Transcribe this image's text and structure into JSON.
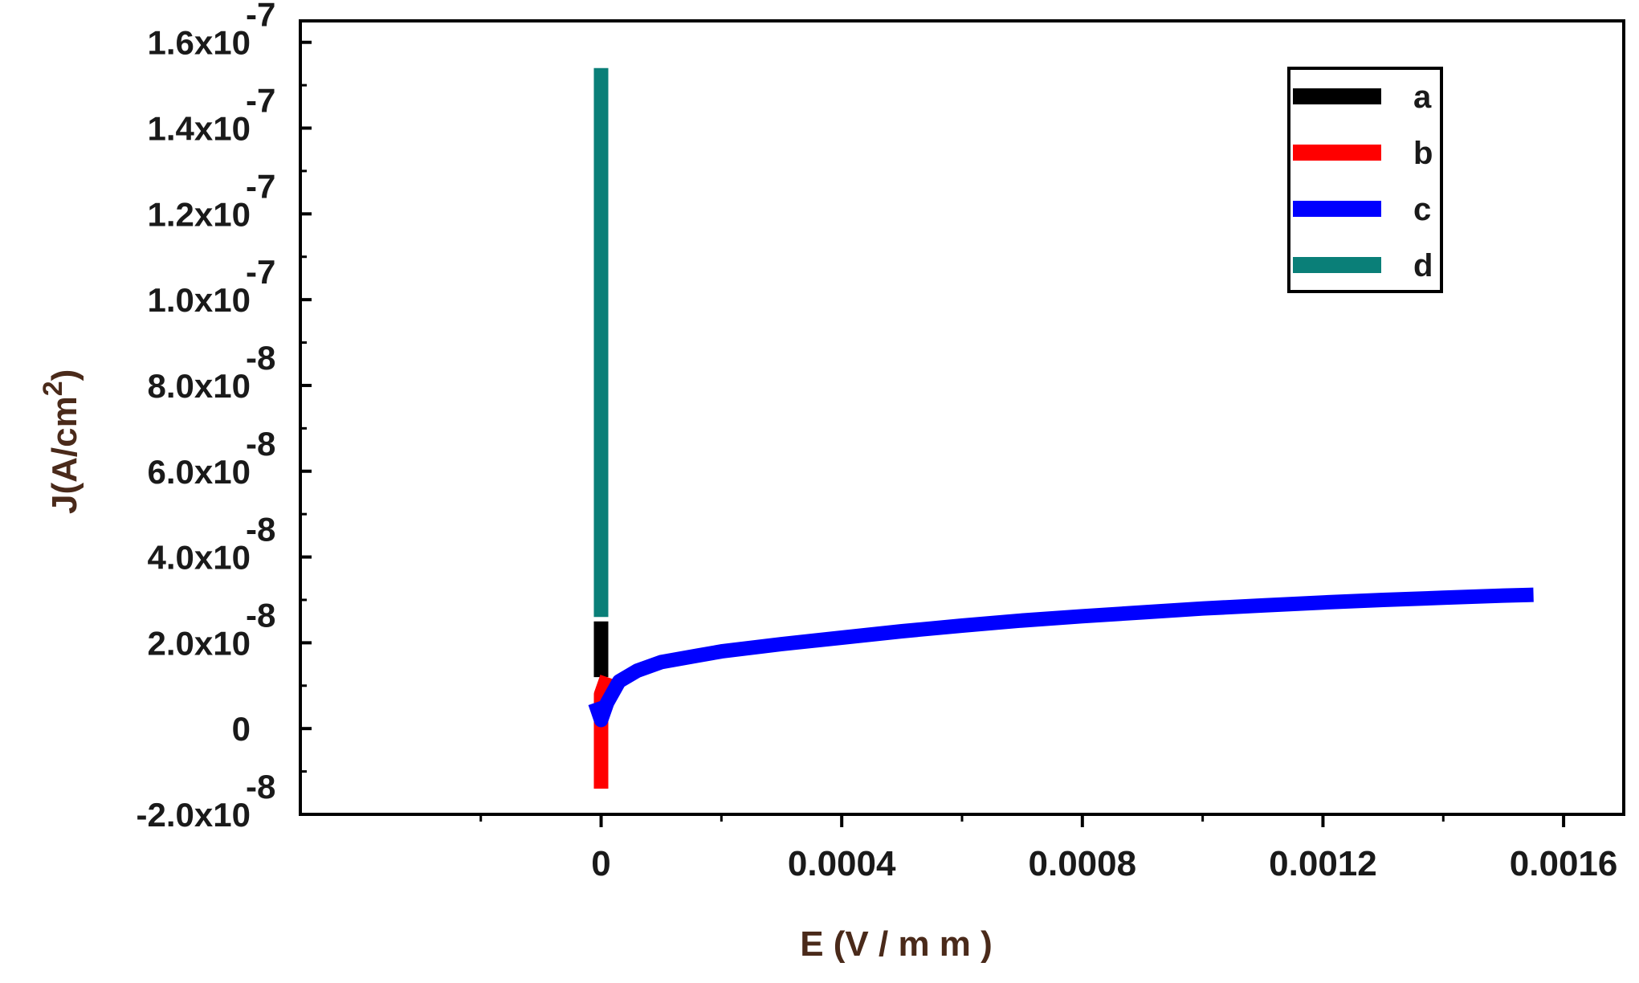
{
  "chart_data": {
    "type": "line",
    "title": "",
    "xlabel": "E (V / m m )",
    "ylabel_main": "J(A/cm",
    "ylabel_sup": "2",
    "ylabel_close": ")",
    "xlim": [
      -0.0005,
      0.0017
    ],
    "ylim": [
      -2e-08,
      1.65e-07
    ],
    "x_ticks": [
      {
        "value": 0,
        "label": "0"
      },
      {
        "value": 0.0004,
        "label": "0.0004"
      },
      {
        "value": 0.0008,
        "label": "0.0008"
      },
      {
        "value": 0.0012,
        "label": "0.0012"
      },
      {
        "value": 0.0016,
        "label": "0.0016"
      }
    ],
    "y_ticks": [
      {
        "value": -2e-08,
        "mantissa": "-2.0x10",
        "exp": "-8"
      },
      {
        "value": 0,
        "mantissa": "0",
        "exp": ""
      },
      {
        "value": 2e-08,
        "mantissa": "2.0x10",
        "exp": "-8"
      },
      {
        "value": 4e-08,
        "mantissa": "4.0x10",
        "exp": "-8"
      },
      {
        "value": 6e-08,
        "mantissa": "6.0x10",
        "exp": "-8"
      },
      {
        "value": 8e-08,
        "mantissa": "8.0x10",
        "exp": "-8"
      },
      {
        "value": 1e-07,
        "mantissa": "1.0x10",
        "exp": "-7"
      },
      {
        "value": 1.2e-07,
        "mantissa": "1.2x10",
        "exp": "-7"
      },
      {
        "value": 1.4e-07,
        "mantissa": "1.4x10",
        "exp": "-7"
      },
      {
        "value": 1.6e-07,
        "mantissa": "1.6x10",
        "exp": "-7"
      }
    ],
    "series": [
      {
        "name": "a",
        "color": "#000000",
        "x": [
          0,
          0,
          0
        ],
        "y": [
          1.2e-08,
          1.9e-08,
          2.5e-08
        ]
      },
      {
        "name": "b",
        "color": "#ff0000",
        "x": [
          0,
          0,
          0,
          0,
          1e-05
        ],
        "y": [
          -1.4e-08,
          -5e-09,
          2e-09,
          8e-09,
          1.2e-08
        ]
      },
      {
        "name": "c",
        "color": "#0000ff",
        "x": [
          -1e-05,
          0,
          1e-05,
          3e-05,
          6e-05,
          0.0001,
          0.00016,
          0.0002,
          0.0003,
          0.0004,
          0.0005,
          0.0006,
          0.0007,
          0.0008,
          0.0009,
          0.001,
          0.0011,
          0.0012,
          0.0013,
          0.0014,
          0.0015,
          0.00155
        ],
        "y": [
          6e-09,
          2e-09,
          6e-09,
          1.1e-08,
          1.35e-08,
          1.55e-08,
          1.7e-08,
          1.8e-08,
          1.97e-08,
          2.12e-08,
          2.27e-08,
          2.4e-08,
          2.52e-08,
          2.62e-08,
          2.71e-08,
          2.8e-08,
          2.87e-08,
          2.94e-08,
          3e-08,
          3.05e-08,
          3.1e-08,
          3.12e-08
        ]
      },
      {
        "name": "d",
        "color": "#0a7f78",
        "x": [
          0,
          0,
          0,
          0
        ],
        "y": [
          2.6e-08,
          6e-08,
          1.1e-07,
          1.54e-07
        ]
      }
    ],
    "legend_position": "top-right",
    "grid": false
  }
}
